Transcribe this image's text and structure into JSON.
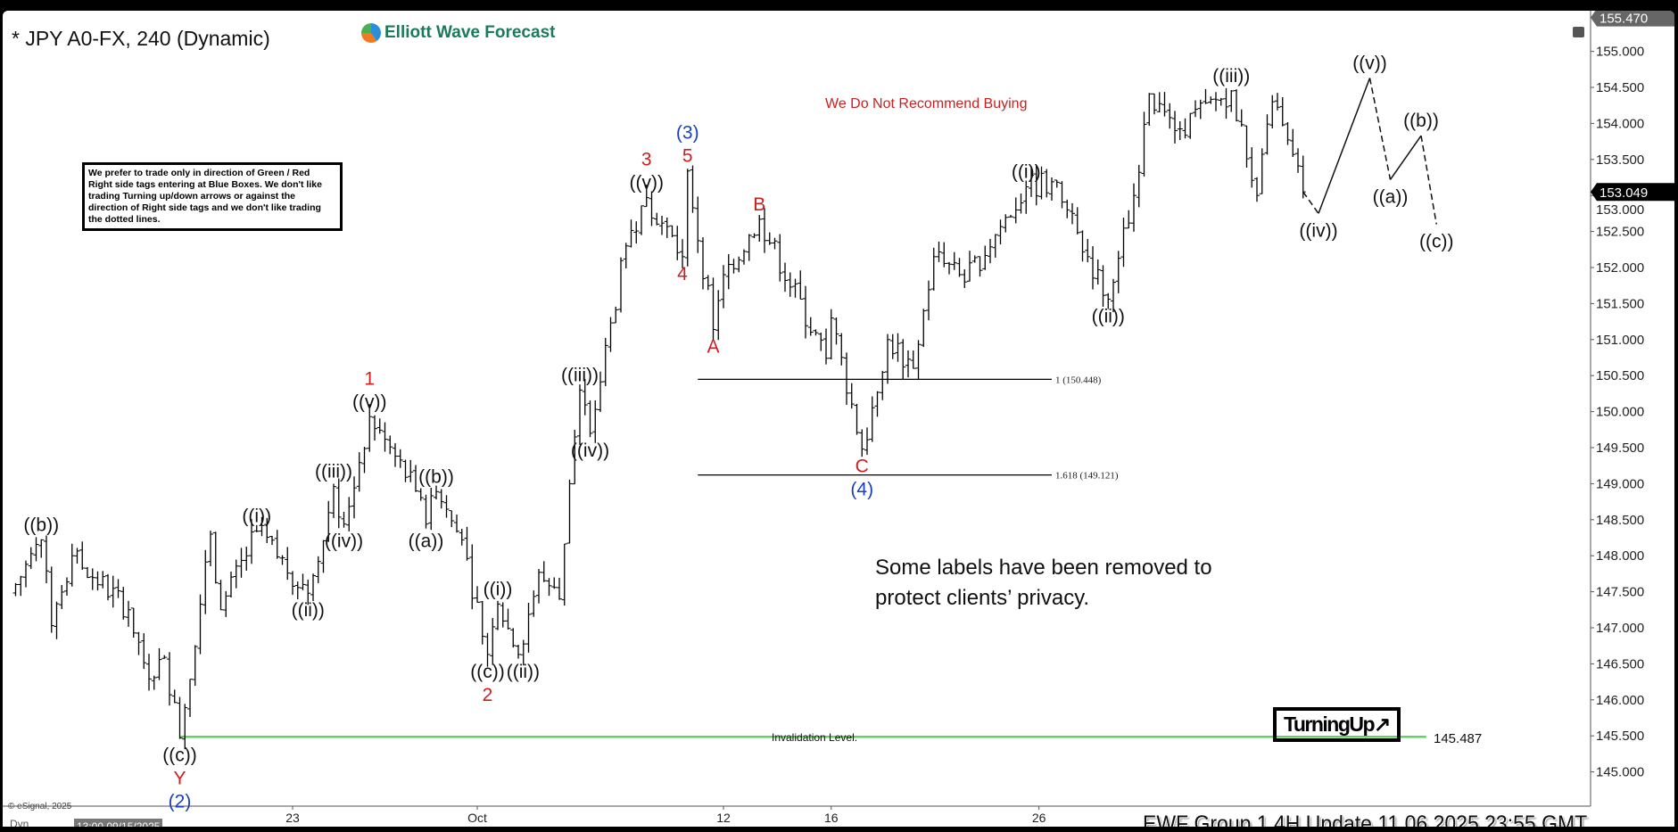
{
  "header": {
    "title": "* JPY A0-FX, 240 (Dynamic)",
    "logo_text": "Elliott Wave Forecast"
  },
  "disclaimer": "We prefer to trade only in direction of Green / Red Right side tags entering at Blue Boxes. We don't like trading Turning up/down arrows or against the direction of Right side tags and we don't like trading the dotted lines.",
  "notice": "We Do Not Recommend Buying",
  "privacy": [
    "Some labels have been removed to",
    "protect clients’ privacy."
  ],
  "turning_tag": "TurningUp↗",
  "invalidation": {
    "label": "Invalidation Level.",
    "value": "145.487",
    "price": 145.487,
    "from": "2025-09-17 08:00",
    "to": "2025-11-12 20:00",
    "color": "#5fd35f"
  },
  "footer": {
    "copyright": "© eSignal, 2025",
    "dyn": "Dyn",
    "update": "EWF Group 1 4H  Update 11.06.2025 23:55 GMT",
    "date_box": "13:00 09/15/2025"
  },
  "colors": {
    "red": "#cc1f1f",
    "blue": "#1a3fbf",
    "black": "#111111"
  },
  "chart_data": {
    "type": "ohlc-bar",
    "symbol": "JPY A0-FX",
    "interval": "240",
    "ylim": [
      144.7,
      155.6
    ],
    "yticks": [
      "155.000",
      "154.500",
      "154.000",
      "153.500",
      "153.000",
      "152.500",
      "152.000",
      "151.500",
      "151.000",
      "150.500",
      "150.000",
      "149.500",
      "149.000",
      "148.500",
      "148.000",
      "147.500",
      "147.000",
      "146.500",
      "146.000",
      "145.500",
      "145.000"
    ],
    "xticks": [
      {
        "label": "23",
        "date": "2025-09-23 00:00"
      },
      {
        "label": "Oct",
        "date": "2025-10-01 00:00"
      },
      {
        "label": "12",
        "date": "2025-10-13 00:00"
      },
      {
        "label": "16",
        "date": "2025-10-16 12:00"
      },
      {
        "label": "26",
        "date": "2025-10-27 06:00"
      }
    ],
    "last_price": "153.049",
    "top_price": "155.470",
    "price_path": [
      {
        "d": "2025-09-09 20:00",
        "p": 147.48
      },
      {
        "d": "2025-09-10 20:00",
        "p": 148.22,
        "pos": "above",
        "labels": [
          "((b))"
        ]
      },
      {
        "d": "2025-09-11 04:00",
        "p": 147.03
      },
      {
        "d": "2025-09-11 20:00",
        "p": 148.0
      },
      {
        "d": "2025-09-15 16:00",
        "p": 147.25
      },
      {
        "d": "2025-09-16 08:00",
        "p": 146.29
      },
      {
        "d": "2025-09-16 20:00",
        "p": 146.59
      },
      {
        "d": "2025-09-17 08:00",
        "p": 145.47,
        "pos": "below",
        "labels": [
          "((c))",
          "Y",
          "(2)"
        ],
        "colors": [
          "black",
          "red",
          "blue"
        ]
      },
      {
        "d": "2025-09-18 08:00",
        "p": 148.3
      },
      {
        "d": "2025-09-18 16:00",
        "p": 147.25
      },
      {
        "d": "2025-09-19 20:00",
        "p": 148.34,
        "pos": "above",
        "labels": [
          "((i))"
        ]
      },
      {
        "d": "2025-09-23 12:00",
        "p": 147.48,
        "pos": "below",
        "labels": [
          "((ii))"
        ]
      },
      {
        "d": "2025-09-23 20:00",
        "p": 147.92
      },
      {
        "d": "2025-09-24 08:00",
        "p": 148.96,
        "pos": "above",
        "labels": [
          "((iii))"
        ]
      },
      {
        "d": "2025-09-24 16:00",
        "p": 148.44,
        "pos": "below",
        "labels": [
          "((iv))"
        ]
      },
      {
        "d": "2025-09-25 12:00",
        "p": 149.93,
        "pos": "above",
        "labels": [
          "((v))",
          "1"
        ],
        "colors": [
          "black",
          "red"
        ]
      },
      {
        "d": "2025-09-29 00:00",
        "p": 148.9
      },
      {
        "d": "2025-09-29 08:00",
        "p": 148.44,
        "pos": "below",
        "labels": [
          "((a))"
        ]
      },
      {
        "d": "2025-09-29 16:00",
        "p": 148.89,
        "pos": "above",
        "labels": [
          "((b))"
        ]
      },
      {
        "d": "2025-09-30 12:00",
        "p": 148.22
      },
      {
        "d": "2025-10-01 08:00",
        "p": 146.63,
        "pos": "below",
        "labels": [
          "((c))",
          "2"
        ],
        "colors": [
          "black",
          "red"
        ]
      },
      {
        "d": "2025-10-01 16:00",
        "p": 147.33,
        "pos": "above",
        "labels": [
          "((i))"
        ]
      },
      {
        "d": "2025-10-02 08:00",
        "p": 146.63,
        "pos": "below",
        "labels": [
          "((ii))"
        ]
      },
      {
        "d": "2025-10-03 00:00",
        "p": 147.77
      },
      {
        "d": "2025-10-03 16:00",
        "p": 147.4
      },
      {
        "d": "2025-10-06 00:00",
        "p": 149.0
      },
      {
        "d": "2025-10-06 08:00",
        "p": 150.3,
        "pos": "above",
        "labels": [
          "((iii))"
        ]
      },
      {
        "d": "2025-10-06 16:00",
        "p": 149.7,
        "pos": "below",
        "labels": [
          "((iv))"
        ]
      },
      {
        "d": "2025-10-07 20:00",
        "p": 152.3
      },
      {
        "d": "2025-10-08 12:00",
        "p": 152.97,
        "pos": "above",
        "labels": [
          "((v))",
          "3"
        ],
        "colors": [
          "black",
          "red"
        ]
      },
      {
        "d": "2025-10-09 16:00",
        "p": 152.15,
        "pos": "below",
        "labels": [
          "4"
        ],
        "colors": [
          "red"
        ]
      },
      {
        "d": "2025-10-09 20:00",
        "p": 153.34,
        "pos": "above",
        "labels": [
          "5",
          "(3)"
        ],
        "colors": [
          "red",
          "blue"
        ]
      },
      {
        "d": "2025-10-10 16:00",
        "p": 151.14,
        "pos": "below",
        "labels": [
          "A"
        ],
        "colors": [
          "red"
        ]
      },
      {
        "d": "2025-10-13 00:00",
        "p": 151.9
      },
      {
        "d": "2025-10-14 04:00",
        "p": 152.67,
        "pos": "above",
        "labels": [
          "B"
        ],
        "colors": [
          "red"
        ]
      },
      {
        "d": "2025-10-16 08:00",
        "p": 150.74
      },
      {
        "d": "2025-10-16 12:00",
        "p": 151.3
      },
      {
        "d": "2025-10-17 12:00",
        "p": 149.48,
        "pos": "below",
        "labels": [
          "C",
          "(4)"
        ],
        "colors": [
          "red",
          "blue"
        ]
      },
      {
        "d": "2025-10-20 08:00",
        "p": 151.0
      },
      {
        "d": "2025-10-21 04:00",
        "p": 150.6
      },
      {
        "d": "2025-10-21 20:00",
        "p": 152.15
      },
      {
        "d": "2025-10-22 20:00",
        "p": 151.8
      },
      {
        "d": "2025-10-24 20:00",
        "p": 153.12,
        "pos": "above",
        "labels": [
          "((i))"
        ]
      },
      {
        "d": "2025-10-27 16:00",
        "p": 153.19
      },
      {
        "d": "2025-10-29 12:00",
        "p": 151.56,
        "pos": "below",
        "labels": [
          "((ii))"
        ]
      },
      {
        "d": "2025-10-30 08:00",
        "p": 153.0
      },
      {
        "d": "2025-10-30 20:00",
        "p": 154.41
      },
      {
        "d": "2025-10-31 16:00",
        "p": 153.9
      },
      {
        "d": "2025-11-04 12:00",
        "p": 154.45,
        "pos": "above",
        "labels": [
          "((iii))"
        ]
      },
      {
        "d": "2025-11-05 08:00",
        "p": 153.0
      },
      {
        "d": "2025-11-05 20:00",
        "p": 154.3
      },
      {
        "d": "2025-11-06 20:00",
        "p": 153.05
      }
    ],
    "projection": [
      {
        "d": "2025-11-07 08:00",
        "p": 152.75,
        "pos": "below",
        "labels": [
          "((iv))"
        ],
        "style": "dashed"
      },
      {
        "d": "2025-11-11 00:00",
        "p": 154.63,
        "pos": "above",
        "labels": [
          "((v))"
        ],
        "style": "solid"
      },
      {
        "d": "2025-11-11 16:00",
        "p": 153.22,
        "pos": "below",
        "labels": [
          "((a))"
        ],
        "style": "dashed"
      },
      {
        "d": "2025-11-12 16:00",
        "p": 153.83,
        "pos": "above",
        "labels": [
          "((b))"
        ],
        "style": "solid"
      },
      {
        "d": "2025-11-13 04:00",
        "p": 152.6,
        "pos": "below",
        "labels": [
          "((c))"
        ],
        "style": "dashed"
      }
    ],
    "fib_levels": [
      {
        "label": "1 (150.448)",
        "price": 150.448,
        "from": "2025-10-10 04:00",
        "to": "2025-10-27 16:00"
      },
      {
        "label": "1.618 (149.121)",
        "price": 149.121,
        "from": "2025-10-10 04:00",
        "to": "2025-10-27 16:00"
      }
    ]
  }
}
